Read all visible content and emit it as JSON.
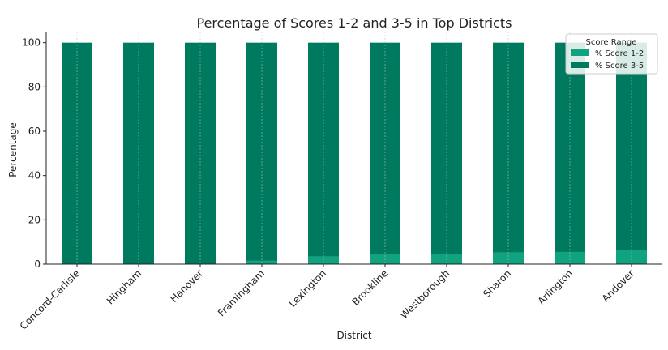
{
  "chart_data": {
    "type": "bar",
    "stacked": true,
    "title": "Percentage of Scores 1-2 and 3-5 in Top Districts",
    "xlabel": "District",
    "ylabel": "Percentage",
    "ylim": [
      0,
      105
    ],
    "yticks": [
      0,
      20,
      40,
      60,
      80,
      100
    ],
    "grid": "vertical dashed",
    "legend": {
      "title": "Score Range",
      "placement": "top-right"
    },
    "categories": [
      "Concord-Carlisle",
      "Hingham",
      "Hanover",
      "Framingham",
      "Lexington",
      "Brookline",
      "Westborough",
      "Sharon",
      "Arlington",
      "Andover"
    ],
    "series": [
      {
        "name": "% Score 1-2",
        "color": "#0fa37f",
        "values": [
          0,
          0,
          0,
          1.5,
          3.5,
          4.5,
          4.5,
          5.2,
          5.5,
          6.5
        ]
      },
      {
        "name": "% Score 3-5",
        "color": "#007a5e",
        "values": [
          100,
          100,
          100,
          98.5,
          96.5,
          95.5,
          95.5,
          94.8,
          94.5,
          93.5
        ]
      }
    ]
  }
}
